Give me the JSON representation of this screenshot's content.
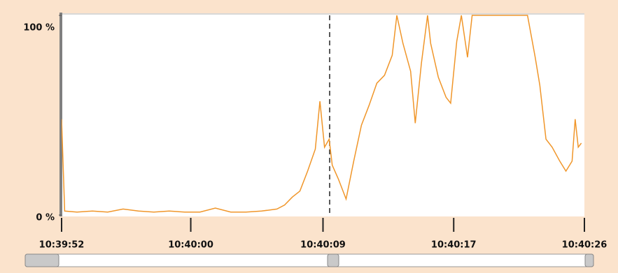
{
  "chart_data": {
    "type": "line",
    "x": [
      0,
      0.2,
      1,
      2,
      3,
      4,
      5,
      6,
      7,
      8,
      9,
      10,
      11,
      12,
      13,
      14,
      14.5,
      15,
      15.5,
      16,
      16.5,
      16.8,
      17.1,
      17.4,
      17.6,
      18,
      18.5,
      19,
      19.5,
      20,
      20.5,
      21,
      21.5,
      21.8,
      22.2,
      22.7,
      23,
      23.4,
      23.8,
      24,
      24.5,
      25,
      25.3,
      25.7,
      26,
      26.4,
      26.7,
      27,
      30.3,
      30.8,
      31.1,
      31.5,
      31.9,
      32.4,
      32.8,
      33.2,
      33.4,
      33.6,
      33.8
    ],
    "values": [
      48,
      2,
      1.5,
      2,
      1.5,
      3,
      2,
      1.5,
      2,
      1.5,
      1.5,
      3.5,
      1.5,
      1.5,
      2,
      3,
      5,
      9,
      12,
      22,
      33,
      57,
      34,
      38,
      25,
      18,
      8,
      27,
      45,
      55,
      66,
      70,
      80,
      100,
      86,
      72,
      46,
      76,
      100,
      86,
      69,
      59,
      56,
      87,
      100,
      79,
      100,
      100,
      100,
      79,
      65,
      38,
      34,
      27,
      22,
      27,
      48,
      34,
      36
    ],
    "color": "#f0962a",
    "xlim": [
      0,
      34
    ],
    "xticks": [
      {
        "value": 0,
        "label": "10:39:52"
      },
      {
        "value": 8.4,
        "label": "10:40:00"
      },
      {
        "value": 17,
        "label": "10:40:09"
      },
      {
        "value": 25.5,
        "label": "10:40:17"
      },
      {
        "value": 34,
        "label": "10:40:26"
      }
    ],
    "ylim": [
      0,
      100
    ],
    "yticks": [
      {
        "value": 0,
        "label": "0 %"
      },
      {
        "value": 100,
        "label": "100 %"
      }
    ]
  }
}
